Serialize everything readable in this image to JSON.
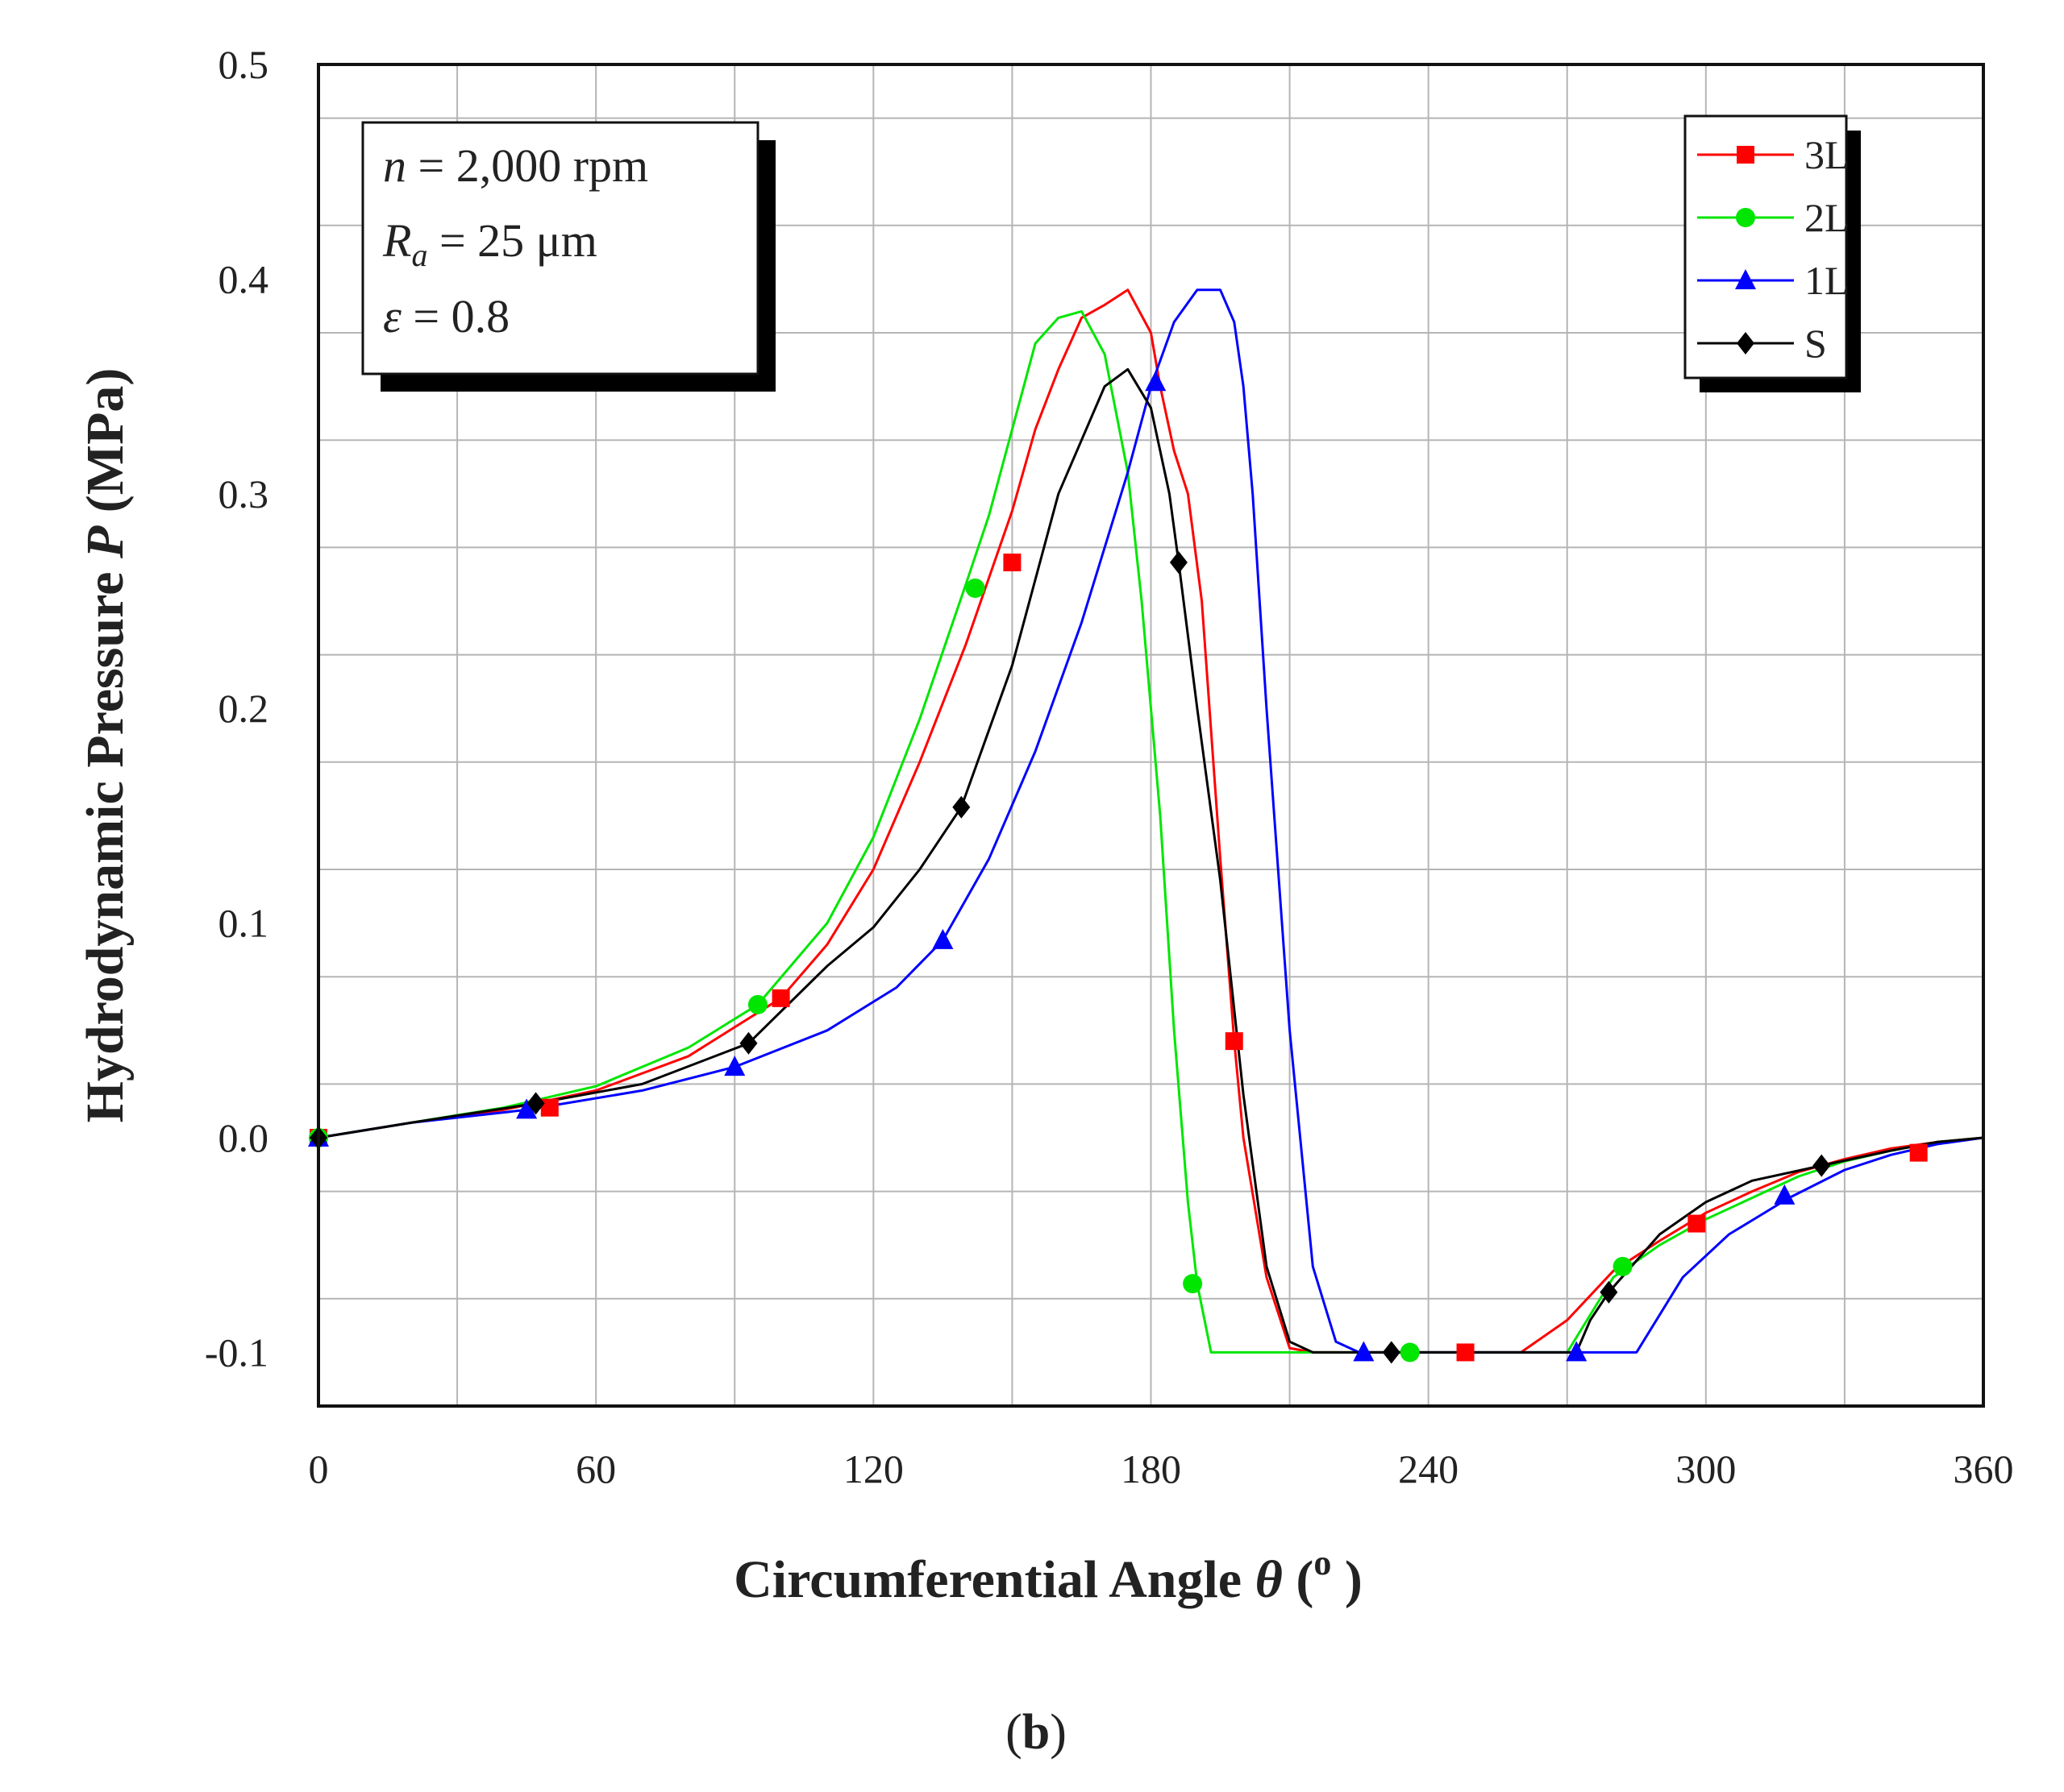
{
  "chart_data": {
    "type": "line",
    "title": "",
    "xlabel": "Circumferential Angle",
    "xlabel_symbol": "θ",
    "xlabel_unit_open": "(",
    "xlabel_unit": "o",
    "xlabel_unit_close": ")",
    "ylabel": "Hydrodynamic Pressure",
    "ylabel_symbol": "P",
    "ylabel_unit": "(MPa)",
    "xlim": [
      0,
      360
    ],
    "ylim": [
      -0.125,
      0.5
    ],
    "grid": true,
    "legend_position": "top-right",
    "x_ticks": [
      0,
      60,
      120,
      180,
      240,
      300,
      360
    ],
    "x_tick_labels": [
      "0",
      "60",
      "120",
      "180",
      "240",
      "300",
      "360"
    ],
    "y_ticks": [
      -0.1,
      0.0,
      0.1,
      0.2,
      0.3,
      0.4,
      0.5
    ],
    "y_tick_labels": [
      "-0.1",
      "0.0",
      "0.1",
      "0.2",
      "0.3",
      "0.4",
      "0.5"
    ],
    "x_grid_step": 30,
    "y_grid_step": 0.05,
    "annotation": {
      "line1_var": "n",
      "line1_text": " = 2,000 rpm",
      "line2_var": "R",
      "line2_sub": "a",
      "line2_text": " = 25 μm",
      "line3_var": "ε",
      "line3_text": " = 0.8"
    },
    "series": [
      {
        "name": "3L",
        "color": "#ff0000",
        "marker": "square",
        "x": [
          0,
          20,
          40,
          60,
          80,
          100,
          110,
          120,
          130,
          140,
          150,
          155,
          160,
          165,
          170,
          175,
          180,
          182,
          185,
          188,
          191,
          195,
          198,
          200,
          205,
          210,
          215,
          220,
          240,
          260,
          270,
          280,
          290,
          300,
          310,
          320,
          330,
          340,
          350,
          360
        ],
        "y": [
          0,
          0.007,
          0.013,
          0.022,
          0.038,
          0.065,
          0.09,
          0.125,
          0.175,
          0.23,
          0.292,
          0.33,
          0.358,
          0.382,
          0.388,
          0.395,
          0.375,
          0.35,
          0.32,
          0.3,
          0.25,
          0.13,
          0.045,
          0.0,
          -0.065,
          -0.098,
          -0.1,
          -0.1,
          -0.1,
          -0.1,
          -0.085,
          -0.062,
          -0.048,
          -0.035,
          -0.025,
          -0.016,
          -0.01,
          -0.005,
          -0.002,
          0
        ],
        "marker_x": [
          0,
          50,
          100,
          150,
          198,
          248,
          298,
          346
        ],
        "marker_y": [
          0,
          0.014,
          0.065,
          0.268,
          0.045,
          -0.1,
          -0.04,
          -0.007
        ]
      },
      {
        "name": "2L",
        "color": "#00e600",
        "marker": "circle",
        "x": [
          0,
          20,
          40,
          60,
          80,
          95,
          110,
          120,
          130,
          140,
          145,
          150,
          155,
          160,
          165,
          170,
          175,
          178,
          182,
          185,
          188,
          190,
          193,
          200,
          220,
          240,
          260,
          270,
          280,
          290,
          300,
          310,
          320,
          330,
          340,
          350,
          360
        ],
        "y": [
          0,
          0.007,
          0.014,
          0.024,
          0.042,
          0.062,
          0.1,
          0.14,
          0.195,
          0.258,
          0.29,
          0.33,
          0.37,
          0.382,
          0.385,
          0.365,
          0.31,
          0.25,
          0.15,
          0.05,
          -0.03,
          -0.068,
          -0.1,
          -0.1,
          -0.1,
          -0.1,
          -0.1,
          -0.1,
          -0.065,
          -0.05,
          -0.038,
          -0.028,
          -0.018,
          -0.011,
          -0.006,
          -0.002,
          0
        ],
        "marker_x": [
          0,
          95,
          142,
          189,
          236,
          282
        ],
        "marker_y": [
          0,
          0.062,
          0.256,
          -0.068,
          -0.1,
          -0.06
        ]
      },
      {
        "name": "1L",
        "color": "#0000ff",
        "marker": "triangle",
        "x": [
          0,
          20,
          45,
          70,
          90,
          110,
          125,
          135,
          145,
          155,
          165,
          175,
          180,
          185,
          190,
          195,
          198,
          200,
          202,
          205,
          210,
          215,
          220,
          225,
          240,
          260,
          272,
          285,
          295,
          305,
          318,
          330,
          340,
          350,
          360
        ],
        "y": [
          0,
          0.007,
          0.013,
          0.022,
          0.033,
          0.05,
          0.07,
          0.092,
          0.13,
          0.18,
          0.24,
          0.31,
          0.35,
          0.38,
          0.395,
          0.395,
          0.38,
          0.35,
          0.3,
          0.2,
          0.05,
          -0.06,
          -0.095,
          -0.1,
          -0.1,
          -0.1,
          -0.1,
          -0.1,
          -0.065,
          -0.045,
          -0.028,
          -0.015,
          -0.008,
          -0.003,
          0
        ],
        "marker_x": [
          0,
          45,
          90,
          135,
          181,
          226,
          272,
          317
        ],
        "marker_y": [
          0,
          0.013,
          0.033,
          0.092,
          0.352,
          -0.1,
          -0.1,
          -0.027
        ]
      },
      {
        "name": "S",
        "color": "#000000",
        "marker": "diamond",
        "x": [
          0,
          20,
          47,
          70,
          93,
          110,
          120,
          130,
          139,
          150,
          160,
          170,
          175,
          180,
          184,
          186,
          190,
          195,
          200,
          205,
          210,
          215,
          232,
          260,
          272,
          275,
          279,
          290,
          300,
          310,
          325,
          340,
          350,
          360
        ],
        "y": [
          0,
          0.007,
          0.016,
          0.025,
          0.044,
          0.08,
          0.098,
          0.125,
          0.154,
          0.22,
          0.3,
          0.35,
          0.358,
          0.34,
          0.3,
          0.268,
          0.2,
          0.12,
          0.02,
          -0.06,
          -0.095,
          -0.1,
          -0.1,
          -0.1,
          -0.1,
          -0.085,
          -0.072,
          -0.045,
          -0.03,
          -0.02,
          -0.013,
          -0.006,
          -0.002,
          0
        ],
        "marker_x": [
          0,
          47,
          93,
          139,
          186,
          232,
          279,
          325
        ],
        "marker_y": [
          0,
          0.016,
          0.044,
          0.154,
          0.268,
          -0.1,
          -0.072,
          -0.013
        ]
      }
    ]
  },
  "caption": {
    "open": "(",
    "label": "b",
    "close": ")"
  }
}
